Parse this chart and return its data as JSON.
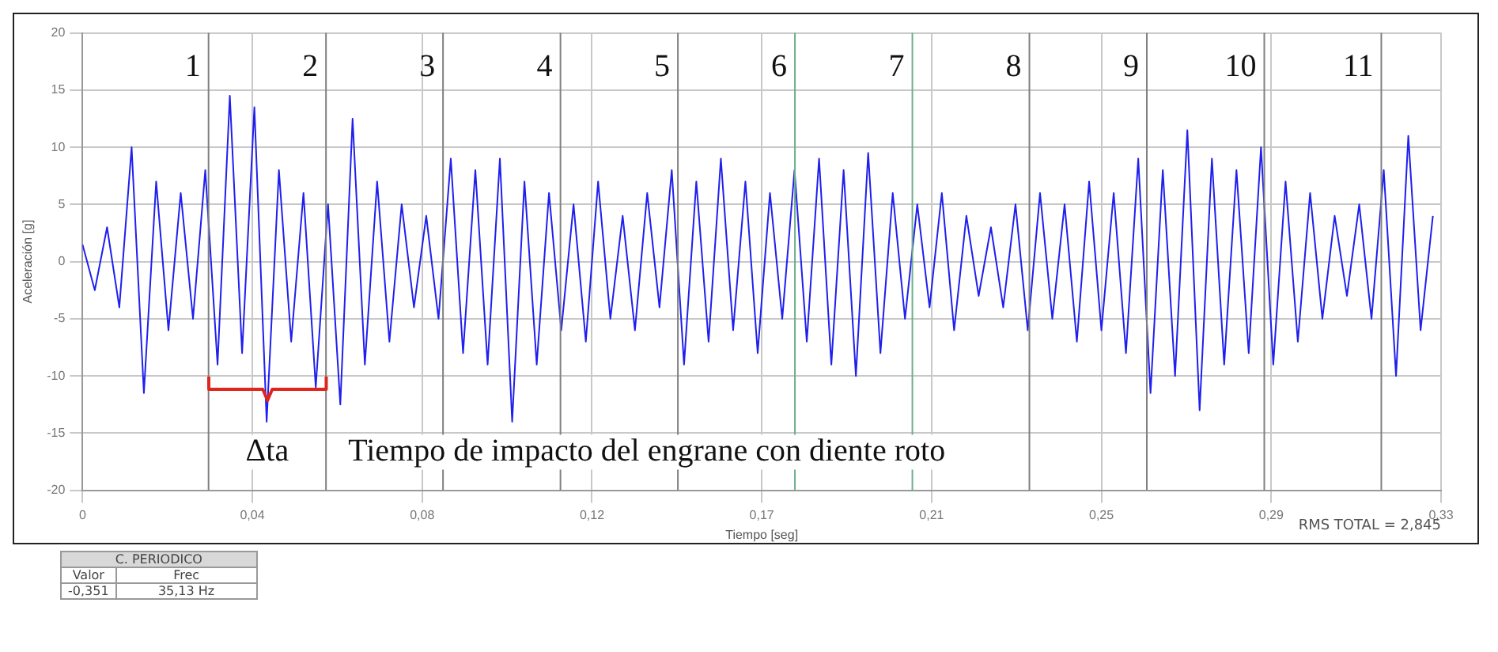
{
  "chart_data": {
    "type": "line",
    "xlabel": "Tiempo [seg]",
    "ylabel": "Aceleración [g]",
    "color": "#1f1fef",
    "marker": "none",
    "grid": true,
    "x": [
      0,
      0.003,
      0.006,
      0.009,
      0.012,
      0.015,
      0.018,
      0.021,
      0.024,
      0.027,
      0.03,
      0.033,
      0.036,
      0.039,
      0.042,
      0.045,
      0.048,
      0.051,
      0.054,
      0.057,
      0.06,
      0.063,
      0.066,
      0.069,
      0.072,
      0.075,
      0.078,
      0.081,
      0.084,
      0.087,
      0.09,
      0.093,
      0.096,
      0.099,
      0.102,
      0.105,
      0.108,
      0.111,
      0.114,
      0.117,
      0.12,
      0.123,
      0.126,
      0.129,
      0.132,
      0.135,
      0.138,
      0.141,
      0.144,
      0.147,
      0.15,
      0.153,
      0.156,
      0.159,
      0.162,
      0.165,
      0.168,
      0.171,
      0.174,
      0.177,
      0.18,
      0.183,
      0.186,
      0.189,
      0.192,
      0.195,
      0.198,
      0.201,
      0.204,
      0.207,
      0.21,
      0.213,
      0.216,
      0.219,
      0.222,
      0.225,
      0.228,
      0.231,
      0.234,
      0.237,
      0.24,
      0.243,
      0.246,
      0.249,
      0.252,
      0.255,
      0.258,
      0.261,
      0.264,
      0.267,
      0.27,
      0.273,
      0.276,
      0.279,
      0.282,
      0.285,
      0.288,
      0.291,
      0.294,
      0.297,
      0.3,
      0.303,
      0.306,
      0.309,
      0.312,
      0.315,
      0.318,
      0.321,
      0.324,
      0.327,
      0.33
    ],
    "values": [
      1.5,
      -2.5,
      3,
      -4,
      10,
      -11.5,
      7,
      -6,
      6,
      -5,
      8,
      -9,
      14.5,
      -8,
      13.5,
      -14,
      8,
      -7,
      6,
      -11,
      5,
      -12.5,
      12.5,
      -9,
      7,
      -7,
      5,
      -4,
      4,
      -5,
      9,
      -8,
      8,
      -9,
      9,
      -14,
      7,
      -9,
      6,
      -6,
      5,
      -7,
      7,
      -5,
      4,
      -6,
      6,
      -4,
      8,
      -9,
      7,
      -7,
      9,
      -6,
      7,
      -8,
      6,
      -5,
      8,
      -7,
      9,
      -9,
      8,
      -10,
      9.5,
      -8,
      6,
      -5,
      5,
      -4,
      6,
      -6,
      4,
      -3,
      3,
      -4,
      5,
      -6,
      6,
      -5,
      5,
      -7,
      7,
      -6,
      6,
      -8,
      9,
      -11.5,
      8,
      -10,
      11.5,
      -13,
      9,
      -9,
      8,
      -8,
      10,
      -9,
      7,
      -7,
      6,
      -5,
      4,
      -3,
      5,
      -5,
      8,
      -10,
      11,
      -6,
      4
    ],
    "xlim": [
      0,
      0.332
    ],
    "ylim": [
      -20,
      20
    ],
    "xticks": [
      {
        "value": 0,
        "label": "0"
      },
      {
        "value": 0.0415,
        "label": "0,04"
      },
      {
        "value": 0.083,
        "label": "0,08"
      },
      {
        "value": 0.1245,
        "label": "0,12"
      },
      {
        "value": 0.166,
        "label": "0,17"
      },
      {
        "value": 0.2075,
        "label": "0,21"
      },
      {
        "value": 0.249,
        "label": "0,25"
      },
      {
        "value": 0.2905,
        "label": "0,29"
      },
      {
        "value": 0.332,
        "label": "0,33"
      }
    ],
    "yticks": [
      -20,
      -15,
      -10,
      -5,
      0,
      5,
      10,
      15,
      20
    ],
    "ref_lines": [
      {
        "axis": "x",
        "value": 0.0308,
        "color": "#808080"
      },
      {
        "axis": "x",
        "value": 0.0595,
        "color": "#808080"
      },
      {
        "axis": "x",
        "value": 0.0881,
        "color": "#808080"
      },
      {
        "axis": "x",
        "value": 0.1168,
        "color": "#808080"
      },
      {
        "axis": "x",
        "value": 0.1455,
        "color": "#808080"
      },
      {
        "axis": "x",
        "value": 0.1741,
        "color": "#6fae8a"
      },
      {
        "axis": "x",
        "value": 0.2028,
        "color": "#6fae8a"
      },
      {
        "axis": "x",
        "value": 0.2314,
        "color": "#808080"
      },
      {
        "axis": "x",
        "value": 0.2601,
        "color": "#808080"
      },
      {
        "axis": "x",
        "value": 0.2888,
        "color": "#808080"
      },
      {
        "axis": "x",
        "value": 0.3174,
        "color": "#808080"
      }
    ],
    "annotations": [
      "1",
      "2",
      "3",
      "4",
      "5",
      "6",
      "7",
      "8",
      "9",
      "10",
      "11",
      "Δta",
      "Tiempo de impacto del engrane con diente roto",
      "RMS TOTAL = 2,845",
      "C. PERIODICO",
      "Valor",
      "Frec",
      "-0,351",
      "35,13 Hz"
    ]
  }
}
